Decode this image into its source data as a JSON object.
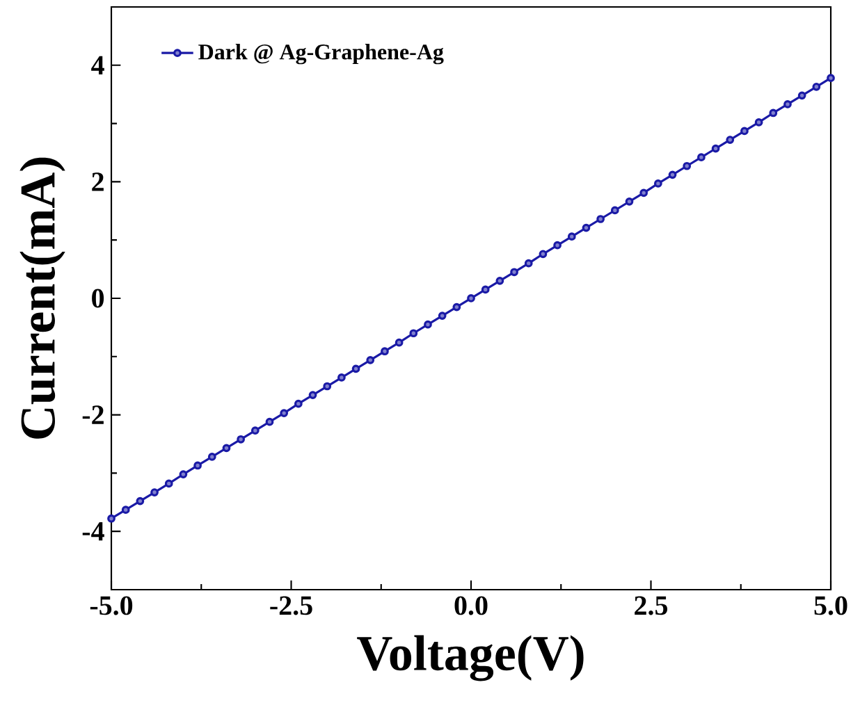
{
  "chart_data": {
    "type": "line",
    "xlabel": "Voltage(V)",
    "ylabel": "Current(mA)",
    "xlim": [
      -5,
      5
    ],
    "ylim": [
      -5,
      5
    ],
    "xticks": [
      {
        "value": -5,
        "label": "-5.0"
      },
      {
        "value": -2.5,
        "label": "-2.5"
      },
      {
        "value": 0,
        "label": "0.0"
      },
      {
        "value": 2.5,
        "label": "2.5"
      },
      {
        "value": 5,
        "label": "5.0"
      }
    ],
    "yticks": [
      -4,
      -2,
      0,
      2,
      4
    ],
    "legend": "top left",
    "marker": "circle",
    "line_style": "solid",
    "grid": false,
    "series": [
      {
        "name": "Dark @ Ag-Graphene-Ag",
        "color": "#1a1aa6",
        "x": [
          -5.0,
          -4.8,
          -4.6,
          -4.4,
          -4.2,
          -4.0,
          -3.8,
          -3.6,
          -3.4,
          -3.2,
          -3.0,
          -2.8,
          -2.6,
          -2.4,
          -2.2,
          -2.0,
          -1.8,
          -1.6,
          -1.4,
          -1.2,
          -1.0,
          -0.8,
          -0.6,
          -0.4,
          -0.2,
          0.0,
          0.2,
          0.4,
          0.6,
          0.8,
          1.0,
          1.2,
          1.4,
          1.6,
          1.8,
          2.0,
          2.2,
          2.4,
          2.6,
          2.8,
          3.0,
          3.2,
          3.4,
          3.6,
          3.8,
          4.0,
          4.2,
          4.4,
          4.6,
          4.8,
          5.0
        ],
        "values": [
          -3.78,
          -3.63,
          -3.48,
          -3.33,
          -3.18,
          -3.02,
          -2.87,
          -2.72,
          -2.57,
          -2.42,
          -2.27,
          -2.12,
          -1.97,
          -1.81,
          -1.66,
          -1.51,
          -1.36,
          -1.21,
          -1.06,
          -0.91,
          -0.76,
          -0.6,
          -0.45,
          -0.3,
          -0.15,
          0,
          0.15,
          0.3,
          0.45,
          0.6,
          0.76,
          0.91,
          1.06,
          1.21,
          1.36,
          1.51,
          1.66,
          1.81,
          1.97,
          2.12,
          2.27,
          2.42,
          2.57,
          2.72,
          2.87,
          3.02,
          3.18,
          3.33,
          3.48,
          3.63,
          3.78
        ]
      }
    ]
  }
}
